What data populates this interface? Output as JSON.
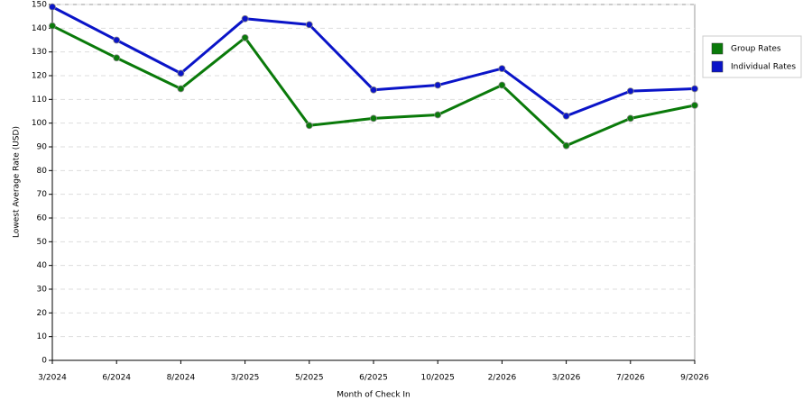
{
  "chart_data": {
    "type": "line",
    "x_label": "Month of Check In",
    "y_label": "Lowest Average Rate (USD)",
    "categories": [
      "3/2024",
      "6/2024",
      "8/2024",
      "3/2025",
      "5/2025",
      "6/2025",
      "10/2025",
      "2/2026",
      "3/2026",
      "7/2026",
      "9/2026"
    ],
    "series": [
      {
        "name": "Group Rates",
        "color": "#0a7a0a",
        "values": [
          141,
          127.5,
          114.5,
          136,
          99,
          102,
          103.5,
          116,
          90.5,
          102,
          107.5
        ]
      },
      {
        "name": "Individual Rates",
        "color": "#0a14c8",
        "values": [
          149,
          135,
          121,
          144,
          141.5,
          114,
          116,
          123,
          103,
          113.5,
          114.5
        ]
      }
    ],
    "ylim": [
      0,
      150
    ],
    "yticks": [
      0,
      10,
      20,
      30,
      40,
      50,
      60,
      70,
      80,
      90,
      100,
      110,
      120,
      130,
      140,
      150
    ],
    "grid": true,
    "legend": "right"
  }
}
